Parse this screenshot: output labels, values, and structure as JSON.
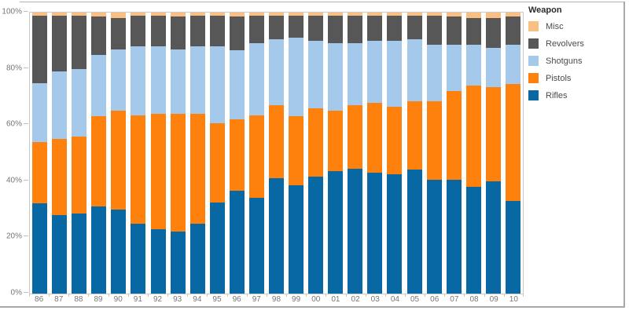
{
  "legend": {
    "title": "Weapon",
    "items": [
      {
        "label": "Misc",
        "color": "#FAC083"
      },
      {
        "label": "Revolvers",
        "color": "#575757"
      },
      {
        "label": "Shotguns",
        "color": "#A4C9EB"
      },
      {
        "label": "Pistols",
        "color": "#FF810D"
      },
      {
        "label": "Rifles",
        "color": "#0768A4"
      }
    ]
  },
  "chart_data": {
    "type": "bar",
    "subtype": "100%-stacked-vertical",
    "title": "",
    "xlabel": "",
    "ylabel": "",
    "values_unit": "percent",
    "ylim": [
      0,
      100
    ],
    "y_ticks": [
      "0%",
      "20%",
      "40%",
      "60%",
      "80%",
      "100%"
    ],
    "grid": false,
    "legend_title": "Weapon",
    "legend_position": "right",
    "categories": [
      "86",
      "87",
      "88",
      "89",
      "90",
      "91",
      "92",
      "93",
      "94",
      "95",
      "96",
      "97",
      "98",
      "99",
      "00",
      "01",
      "02",
      "03",
      "04",
      "05",
      "06",
      "07",
      "08",
      "09",
      "10"
    ],
    "series": [
      {
        "name": "Rifles",
        "color": "#0768A4",
        "values": [
          32,
          28,
          28.5,
          31,
          30,
          25,
          23,
          22,
          25,
          32.5,
          36.5,
          34,
          41,
          38.5,
          41.5,
          43.5,
          44.5,
          43,
          42.5,
          44,
          40.5,
          40.5,
          38,
          40,
          33
        ]
      },
      {
        "name": "Pistols",
        "color": "#FF810D",
        "values": [
          22,
          27,
          27.5,
          32,
          35,
          38.5,
          41,
          42,
          39,
          28,
          25.5,
          29.5,
          26,
          24.5,
          24.5,
          21.5,
          22.5,
          25,
          24,
          24.5,
          28,
          31.5,
          36,
          33.5,
          41.5
        ]
      },
      {
        "name": "Shotguns",
        "color": "#A4C9EB",
        "values": [
          21,
          24,
          24,
          22,
          22,
          24.5,
          24,
          23,
          24,
          27.5,
          24.5,
          25.5,
          23.5,
          28,
          24,
          24,
          22,
          22,
          23.5,
          22,
          20,
          16.5,
          14.5,
          14,
          14
        ]
      },
      {
        "name": "Revolvers",
        "color": "#575757",
        "values": [
          24,
          20,
          19,
          13.5,
          11,
          11,
          11,
          11.5,
          11,
          11,
          12,
          10,
          8.5,
          8,
          9,
          10,
          10,
          9,
          9,
          8.5,
          10.5,
          10,
          9.5,
          10.5,
          10
        ]
      },
      {
        "name": "Misc",
        "color": "#FAC083",
        "values": [
          1,
          1,
          1,
          1.5,
          2,
          1,
          1,
          1.5,
          1,
          1,
          1.5,
          1,
          1,
          1,
          1,
          1,
          1,
          1,
          1,
          1,
          1,
          1.5,
          2,
          2,
          1.5
        ]
      }
    ]
  }
}
